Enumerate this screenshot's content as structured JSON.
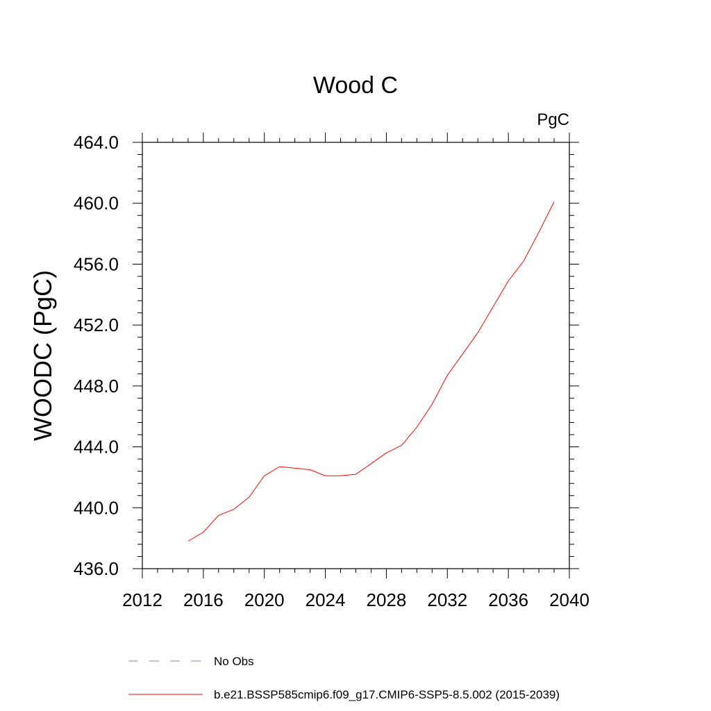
{
  "chart_data": {
    "type": "line",
    "title": "Wood C",
    "units_label": "PgC",
    "ylabel": "WOODC  (PgC)",
    "xlabel": "",
    "xlim": [
      2012,
      2040
    ],
    "ylim": [
      436.0,
      464.0
    ],
    "x_ticks": [
      "2012",
      "2016",
      "2020",
      "2024",
      "2028",
      "2032",
      "2036",
      "2040"
    ],
    "y_ticks": [
      "436.0",
      "440.0",
      "444.0",
      "448.0",
      "452.0",
      "456.0",
      "460.0",
      "464.0"
    ],
    "grid": false,
    "legend_position": "bottom",
    "series": [
      {
        "name": "b.e21.BSSP585cmip6.f09_g17.CMIP6-SSP5-8.5.002 (2015-2039)",
        "color": "#ff0000",
        "style": "solid",
        "x": [
          2015,
          2016,
          2017,
          2018,
          2019,
          2020,
          2021,
          2022,
          2023,
          2024,
          2025,
          2026,
          2027,
          2028,
          2029,
          2030,
          2031,
          2032,
          2033,
          2034,
          2035,
          2036,
          2037,
          2038,
          2039
        ],
        "y": [
          437.8,
          438.4,
          439.5,
          439.9,
          440.7,
          442.1,
          442.7,
          442.6,
          442.5,
          442.1,
          442.1,
          442.2,
          442.9,
          443.6,
          444.1,
          445.3,
          446.8,
          448.7,
          450.1,
          451.5,
          453.2,
          454.9,
          456.2,
          458.1,
          460.1
        ]
      }
    ],
    "legend": [
      {
        "label": "No Obs",
        "color": "#8080c0",
        "style": "dashed"
      },
      {
        "label": "b.e21.BSSP585cmip6.f09_g17.CMIP6-SSP5-8.5.002 (2015-2039)",
        "color": "#ff0000",
        "style": "solid"
      }
    ]
  }
}
